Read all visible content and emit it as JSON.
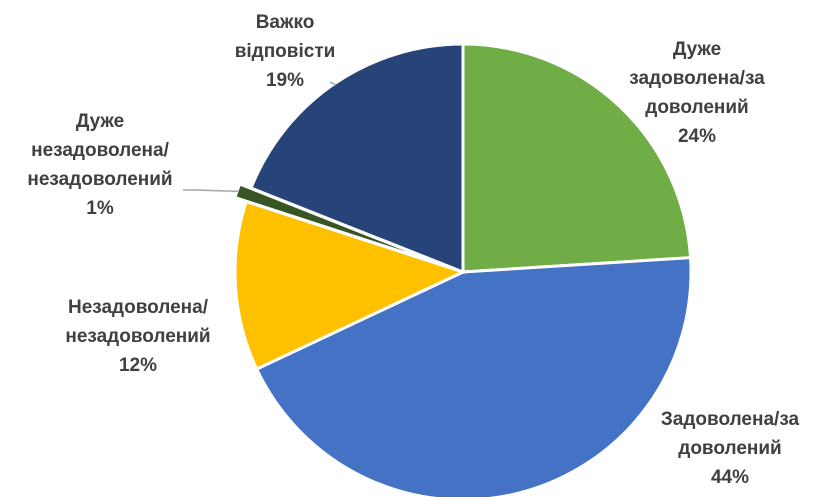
{
  "chart_data": {
    "type": "pie",
    "title": "",
    "slices": [
      {
        "label": [
          "Дуже",
          "задоволена/за",
          "доволений"
        ],
        "value": 24,
        "value_label": "24%",
        "color": "#70ad47"
      },
      {
        "label": [
          "Задоволена/за",
          "доволений"
        ],
        "value": 44,
        "value_label": "44%",
        "color": "#4472c4"
      },
      {
        "label": [
          "Незадоволена/",
          "незадоволений"
        ],
        "value": 12,
        "value_label": "12%",
        "color": "#ffc000"
      },
      {
        "label": [
          "Дуже",
          "незадоволена/",
          "незадоволений"
        ],
        "value": 1,
        "value_label": "1%",
        "color": "#375623"
      },
      {
        "label": [
          "Важко",
          "відповісти"
        ],
        "value": 19,
        "value_label": "19%",
        "color": "#264478"
      }
    ],
    "legend": "none"
  }
}
